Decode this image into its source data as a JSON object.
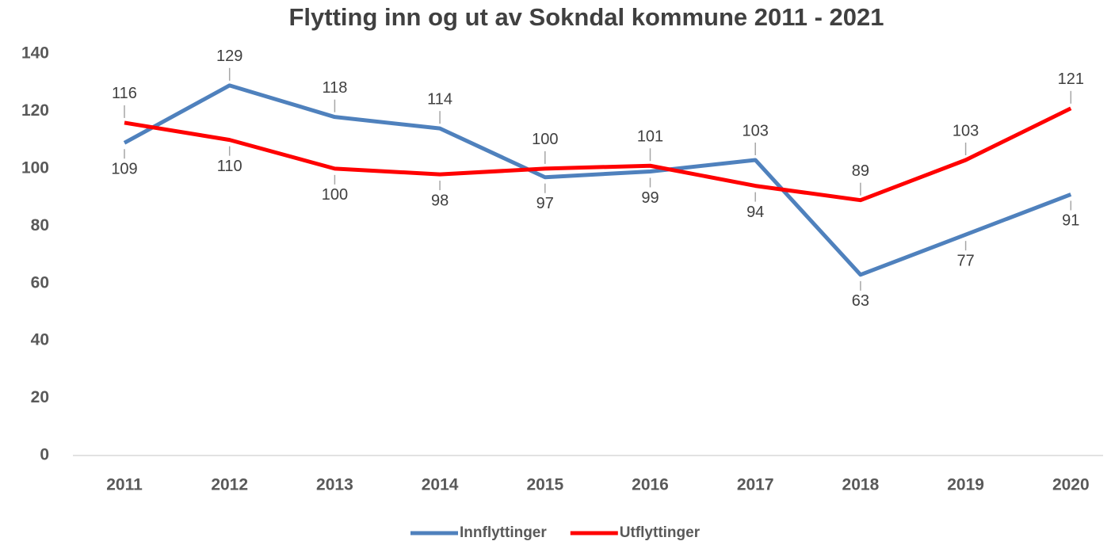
{
  "chart_data": {
    "type": "line",
    "title": "Flytting inn og ut av Sokndal kommune 2011 - 2021",
    "categories": [
      "2011",
      "2012",
      "2013",
      "2014",
      "2015",
      "2016",
      "2017",
      "2018",
      "2019",
      "2020"
    ],
    "series": [
      {
        "name": "Innflyttinger",
        "color": "#4f81bd",
        "values": [
          109,
          129,
          118,
          114,
          97,
          99,
          103,
          63,
          77,
          91
        ]
      },
      {
        "name": "Utflyttinger",
        "color": "#ff0000",
        "values": [
          116,
          110,
          100,
          98,
          100,
          101,
          94,
          89,
          103,
          121
        ]
      }
    ],
    "ylim": [
      0,
      140
    ],
    "yticks": [
      0,
      20,
      40,
      60,
      80,
      100,
      120,
      140
    ],
    "grid": false,
    "legend": "bottom"
  }
}
